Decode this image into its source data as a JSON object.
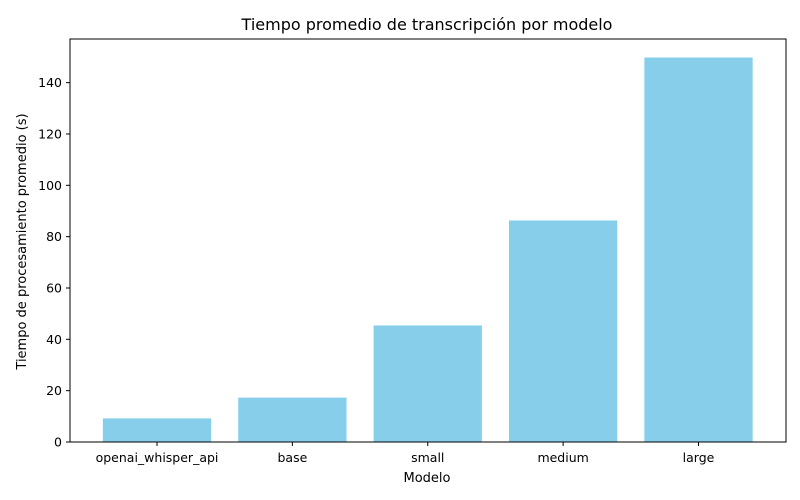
{
  "chart_data": {
    "type": "bar",
    "title": "Tiempo promedio de transcripción por modelo",
    "xlabel": "Modelo",
    "ylabel": "Tiempo de procesamiento promedio (s)",
    "categories": [
      "openai_whisper_api",
      "base",
      "small",
      "medium",
      "large"
    ],
    "values": [
      9.2,
      17.3,
      45.4,
      86.3,
      149.8
    ],
    "ylim": [
      0,
      157
    ],
    "yticks": [
      0,
      20,
      40,
      60,
      80,
      100,
      120,
      140
    ],
    "bar_color": "#87CEEB",
    "grid": false,
    "legend": false
  }
}
